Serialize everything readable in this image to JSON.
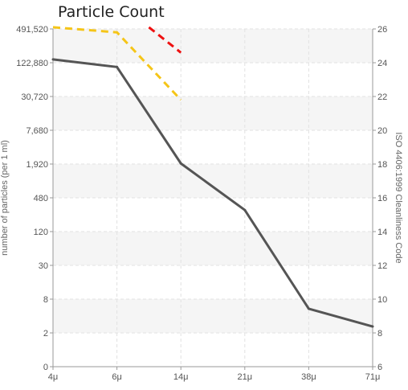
{
  "chart_data": {
    "type": "line",
    "title": "Particle Count",
    "categories": [
      "4μ",
      "6μ",
      "14μ",
      "21μ",
      "38μ",
      "71μ"
    ],
    "y_left": {
      "label": "number of particles (per 1 ml)",
      "scale": "log2",
      "ticks": [
        "0",
        "2",
        "8",
        "30",
        "120",
        "480",
        "1,920",
        "7,680",
        "30,720",
        "122,880",
        "491,520"
      ]
    },
    "y_right": {
      "label": "ISO 4406:1999 Cleanliness Code",
      "range": [
        6,
        26
      ],
      "ticks": [
        "6",
        "8",
        "10",
        "12",
        "14",
        "16",
        "18",
        "20",
        "22",
        "24",
        "26"
      ]
    },
    "series": [
      {
        "name": "",
        "color": "#555555",
        "style": "solid",
        "values": [
          150000,
          110000,
          2100,
          310,
          5.4,
          2.6
        ]
      }
    ],
    "limit_lines": [
      {
        "color": "#f5c518",
        "style": "dashed",
        "points": [
          [
            "4μ",
            26.1
          ],
          [
            "6μ",
            25.8
          ],
          [
            "14μ",
            21.8
          ]
        ]
      },
      {
        "color": "#ee1111",
        "style": "dashed",
        "points": [
          [
            "10μ",
            26.1
          ],
          [
            "14μ",
            24.6
          ]
        ]
      }
    ],
    "grid": true
  }
}
